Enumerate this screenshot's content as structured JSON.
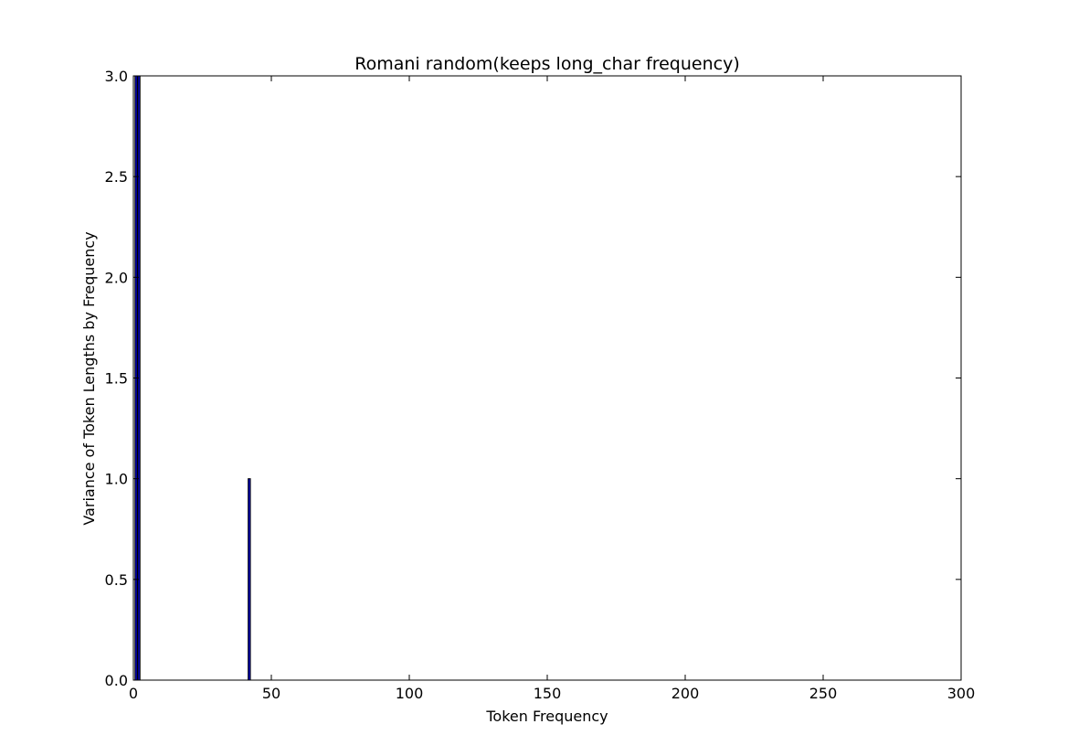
{
  "chart_data": {
    "type": "bar",
    "title": "Romani random(keeps long_char frequency)",
    "xlabel": "Token Frequency",
    "ylabel": "Variance of Token Lengths by Frequency",
    "xlim": [
      0,
      300
    ],
    "ylim": [
      0.0,
      3.0
    ],
    "xticks": [
      "0",
      "50",
      "100",
      "150",
      "200",
      "250",
      "300"
    ],
    "yticks": [
      "0.0",
      "0.5",
      "1.0",
      "1.5",
      "2.0",
      "2.5",
      "3.0"
    ],
    "grid": false,
    "bar_color": "#0000cc",
    "bar_edge": "#000000",
    "bar_width": 0.8,
    "bars": [
      {
        "x": 1,
        "value": 3.0
      },
      {
        "x": 2,
        "value": 3.0
      },
      {
        "x": 42,
        "value": 1.0
      }
    ]
  }
}
